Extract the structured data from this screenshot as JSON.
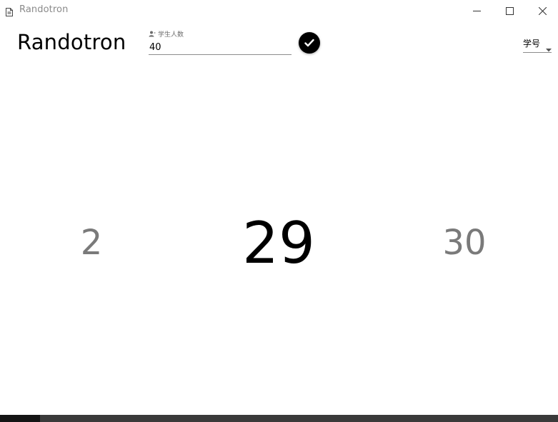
{
  "window": {
    "title": "Randotron",
    "icon": "document-icon"
  },
  "header": {
    "app_title": "Randotron",
    "count_field": {
      "label": "学生人数",
      "value": "40",
      "icon": "person-icon"
    },
    "confirm_icon": "checkmark-icon",
    "mode_select": {
      "selected": "学号",
      "icon": "caret-down-icon"
    }
  },
  "numbers": {
    "previous": "2",
    "current": "29",
    "next": "30"
  },
  "progress": {
    "fraction": 0.072
  },
  "colors": {
    "accent": "#000000",
    "muted_number": "#7a7a7a",
    "bottom_bar": "#3a3a3a",
    "bottom_bar_fill": "#141414"
  }
}
